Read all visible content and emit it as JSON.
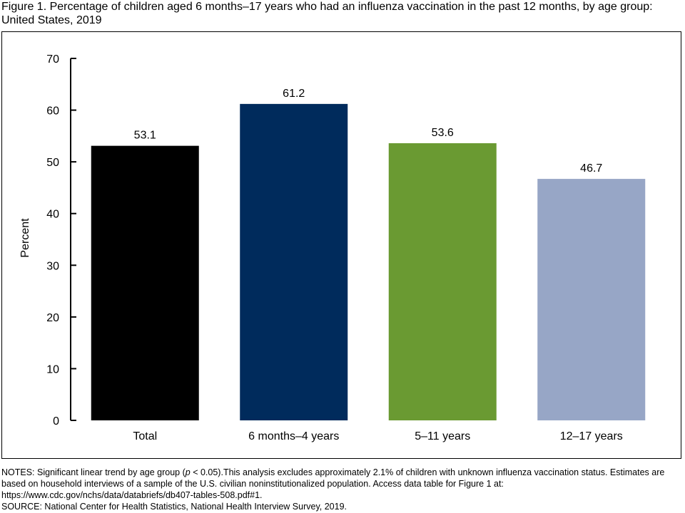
{
  "figure": {
    "title": "Figure 1. Percentage of children aged 6 months–17 years who had an influenza vaccination in the past 12 months, by age group: United States, 2019"
  },
  "chart_data": {
    "type": "bar",
    "title": "",
    "xlabel": "",
    "ylabel": "Percent",
    "ylim": [
      0,
      70
    ],
    "yticks": [
      0,
      10,
      20,
      30,
      40,
      50,
      60,
      70
    ],
    "grid": false,
    "categories": [
      "Total",
      "6 months–4 years",
      "5–11 years",
      "12–17 years"
    ],
    "values": [
      53.1,
      61.2,
      53.6,
      46.7
    ],
    "value_labels": [
      "53.1",
      "61.2",
      "53.6",
      "46.7"
    ],
    "colors": [
      "#000000",
      "#002b5c",
      "#6a9a32",
      "#97a6c6"
    ]
  },
  "notes": {
    "notes_prefix": "NOTES: Significant linear trend by age group (",
    "notes_p": "p",
    "notes_rest": " < 0.05).This analysis excludes approximately 2.1% of children with unknown influenza vaccination status. Estimates are based on household interviews of a sample of the U.S. civilian noninstitutionalized population. Access data table for Figure 1 at: https://www.cdc.gov/nchs/data/databriefs/db407-tables-508.pdf#1.",
    "source": "SOURCE: National Center for Health Statistics, National Health Interview Survey, 2019."
  }
}
